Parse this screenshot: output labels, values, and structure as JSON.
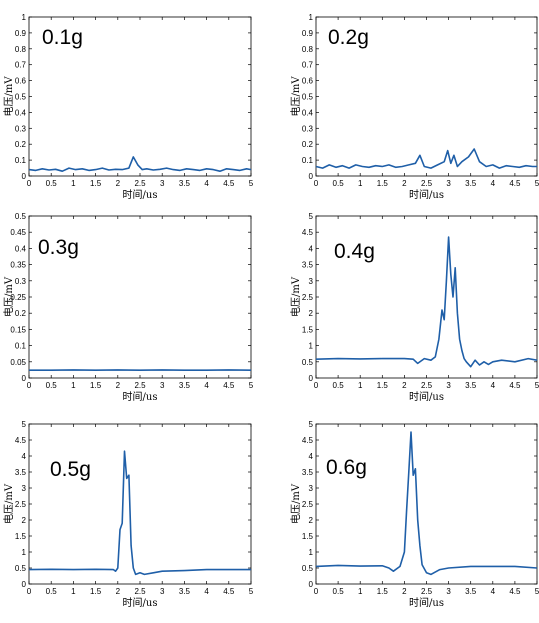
{
  "chart_data": [
    {
      "type": "line",
      "title": "0.1g",
      "xlabel": "时间/us",
      "ylabel": "电压/mV",
      "xlim": [
        0,
        5
      ],
      "ylim": [
        0,
        1
      ],
      "xticks": [
        "0",
        "0.5",
        "1",
        "1.5",
        "2",
        "2.5",
        "3",
        "3.5",
        "4",
        "4.5",
        "5"
      ],
      "yticks": [
        "0",
        "0.1",
        "0.2",
        "0.3",
        "0.4",
        "0.5",
        "0.6",
        "0.7",
        "0.8",
        "0.9",
        "1"
      ],
      "grid": false,
      "line_color": "#1f5fa8",
      "series": [
        {
          "x": [
            0,
            0.15,
            0.3,
            0.45,
            0.6,
            0.75,
            0.9,
            1.05,
            1.2,
            1.35,
            1.5,
            1.65,
            1.8,
            1.95,
            2.1,
            2.25,
            2.35,
            2.45,
            2.55,
            2.65,
            2.8,
            2.95,
            3.1,
            3.25,
            3.4,
            3.55,
            3.7,
            3.85,
            4.0,
            4.15,
            4.3,
            4.45,
            4.6,
            4.75,
            4.9,
            5
          ],
          "y": [
            0.04,
            0.035,
            0.045,
            0.038,
            0.042,
            0.03,
            0.05,
            0.04,
            0.045,
            0.035,
            0.04,
            0.05,
            0.038,
            0.042,
            0.04,
            0.05,
            0.12,
            0.07,
            0.04,
            0.045,
            0.038,
            0.042,
            0.05,
            0.04,
            0.035,
            0.045,
            0.04,
            0.035,
            0.045,
            0.04,
            0.03,
            0.045,
            0.04,
            0.035,
            0.045,
            0.04
          ]
        }
      ]
    },
    {
      "type": "line",
      "title": "0.2g",
      "xlabel": "时间/us",
      "ylabel": "电压/mV",
      "xlim": [
        0,
        5
      ],
      "ylim": [
        0,
        1
      ],
      "xticks": [
        "0",
        "0.5",
        "1",
        "1.5",
        "2",
        "2.5",
        "3",
        "3.5",
        "4",
        "4.5",
        "5"
      ],
      "yticks": [
        "0",
        "0.1",
        "0.2",
        "0.3",
        "0.4",
        "0.5",
        "0.6",
        "0.7",
        "0.8",
        "0.9",
        "1"
      ],
      "grid": false,
      "line_color": "#1f5fa8",
      "series": [
        {
          "x": [
            0,
            0.15,
            0.3,
            0.45,
            0.6,
            0.75,
            0.9,
            1.05,
            1.2,
            1.35,
            1.5,
            1.65,
            1.8,
            1.95,
            2.1,
            2.25,
            2.35,
            2.45,
            2.6,
            2.75,
            2.9,
            2.98,
            3.05,
            3.12,
            3.2,
            3.3,
            3.45,
            3.58,
            3.7,
            3.85,
            4.0,
            4.15,
            4.3,
            4.45,
            4.6,
            4.75,
            4.9,
            5
          ],
          "y": [
            0.06,
            0.05,
            0.07,
            0.055,
            0.065,
            0.05,
            0.07,
            0.06,
            0.055,
            0.065,
            0.06,
            0.07,
            0.055,
            0.06,
            0.07,
            0.08,
            0.13,
            0.06,
            0.05,
            0.07,
            0.09,
            0.16,
            0.08,
            0.13,
            0.06,
            0.09,
            0.12,
            0.17,
            0.09,
            0.06,
            0.07,
            0.05,
            0.065,
            0.06,
            0.055,
            0.065,
            0.06,
            0.06
          ]
        }
      ]
    },
    {
      "type": "line",
      "title": "0.3g",
      "xlabel": "时间/us",
      "ylabel": "电压/mV",
      "xlim": [
        0,
        5
      ],
      "ylim": [
        0,
        0.5
      ],
      "xticks": [
        "0",
        "0.5",
        "1",
        "1.5",
        "2",
        "2.5",
        "3",
        "3.5",
        "4",
        "4.5",
        "5"
      ],
      "yticks": [
        "0",
        "0.05",
        "0.1",
        "0.15",
        "0.2",
        "0.25",
        "0.3",
        "0.35",
        "0.4",
        "0.45",
        "0.5"
      ],
      "grid": false,
      "line_color": "#1f5fa8",
      "series": [
        {
          "x": [
            0,
            0.5,
            1,
            1.5,
            2,
            2.5,
            3,
            3.5,
            4,
            4.5,
            5
          ],
          "y": [
            0.024,
            0.024,
            0.025,
            0.024,
            0.025,
            0.024,
            0.025,
            0.024,
            0.024,
            0.025,
            0.024
          ]
        }
      ]
    },
    {
      "type": "line",
      "title": "0.4g",
      "xlabel": "时间/us",
      "ylabel": "电压/mV",
      "xlim": [
        0,
        5
      ],
      "ylim": [
        0,
        5
      ],
      "xticks": [
        "0",
        "0.5",
        "1",
        "1.5",
        "2",
        "2.5",
        "3",
        "3.5",
        "4",
        "4.5",
        "5"
      ],
      "yticks": [
        "0",
        "0.5",
        "1",
        "1.5",
        "2",
        "2.5",
        "3",
        "3.5",
        "4",
        "4.5",
        "5"
      ],
      "grid": false,
      "line_color": "#1f5fa8",
      "series": [
        {
          "x": [
            0,
            0.5,
            1,
            1.5,
            2,
            2.2,
            2.3,
            2.45,
            2.6,
            2.7,
            2.78,
            2.85,
            2.9,
            2.95,
            3.0,
            3.05,
            3.1,
            3.15,
            3.2,
            3.25,
            3.3,
            3.35,
            3.4,
            3.5,
            3.6,
            3.7,
            3.8,
            3.9,
            4.0,
            4.2,
            4.5,
            4.8,
            5
          ],
          "y": [
            0.58,
            0.6,
            0.59,
            0.6,
            0.6,
            0.58,
            0.45,
            0.6,
            0.55,
            0.65,
            1.2,
            2.1,
            1.8,
            3.0,
            4.35,
            3.2,
            2.5,
            3.4,
            2.0,
            1.2,
            0.85,
            0.6,
            0.5,
            0.35,
            0.55,
            0.4,
            0.5,
            0.42,
            0.5,
            0.55,
            0.5,
            0.6,
            0.55
          ]
        }
      ]
    },
    {
      "type": "line",
      "title": "0.5g",
      "xlabel": "时间/us",
      "ylabel": "电压/mV",
      "xlim": [
        0,
        5
      ],
      "ylim": [
        0,
        5
      ],
      "xticks": [
        "0",
        "0.5",
        "1",
        "1.5",
        "2",
        "2.5",
        "3",
        "3.5",
        "4",
        "4.5",
        "5"
      ],
      "yticks": [
        "0",
        "0.5",
        "1",
        "1.5",
        "2",
        "2.5",
        "3",
        "3.5",
        "4",
        "4.5",
        "5"
      ],
      "grid": false,
      "line_color": "#1f5fa8",
      "series": [
        {
          "x": [
            0,
            0.5,
            1,
            1.5,
            1.9,
            1.95,
            2.0,
            2.05,
            2.1,
            2.15,
            2.2,
            2.25,
            2.3,
            2.35,
            2.4,
            2.5,
            2.6,
            2.8,
            3.0,
            3.5,
            4.0,
            4.5,
            5
          ],
          "y": [
            0.45,
            0.46,
            0.45,
            0.46,
            0.45,
            0.4,
            0.5,
            1.7,
            1.9,
            4.15,
            3.3,
            3.4,
            1.2,
            0.5,
            0.3,
            0.35,
            0.3,
            0.35,
            0.4,
            0.42,
            0.45,
            0.45,
            0.45
          ]
        }
      ]
    },
    {
      "type": "line",
      "title": "0.6g",
      "xlabel": "时间/us",
      "ylabel": "电压/mV",
      "xlim": [
        0,
        5
      ],
      "ylim": [
        0,
        5
      ],
      "xticks": [
        "0",
        "0.5",
        "1",
        "1.5",
        "2",
        "2.5",
        "3",
        "3.5",
        "4",
        "4.5",
        "5"
      ],
      "yticks": [
        "0",
        "0.5",
        "1",
        "1.5",
        "2",
        "2.5",
        "3",
        "3.5",
        "4",
        "4.5",
        "5"
      ],
      "grid": false,
      "line_color": "#1f5fa8",
      "series": [
        {
          "x": [
            0,
            0.5,
            1,
            1.5,
            1.65,
            1.75,
            1.9,
            2.0,
            2.05,
            2.1,
            2.15,
            2.2,
            2.25,
            2.3,
            2.35,
            2.4,
            2.5,
            2.6,
            2.8,
            3.0,
            3.5,
            4.0,
            4.5,
            5
          ],
          "y": [
            0.55,
            0.58,
            0.56,
            0.57,
            0.5,
            0.4,
            0.55,
            1.0,
            2.3,
            3.5,
            4.75,
            3.4,
            3.6,
            2.0,
            1.2,
            0.6,
            0.35,
            0.3,
            0.45,
            0.5,
            0.55,
            0.55,
            0.55,
            0.5
          ]
        }
      ]
    }
  ]
}
